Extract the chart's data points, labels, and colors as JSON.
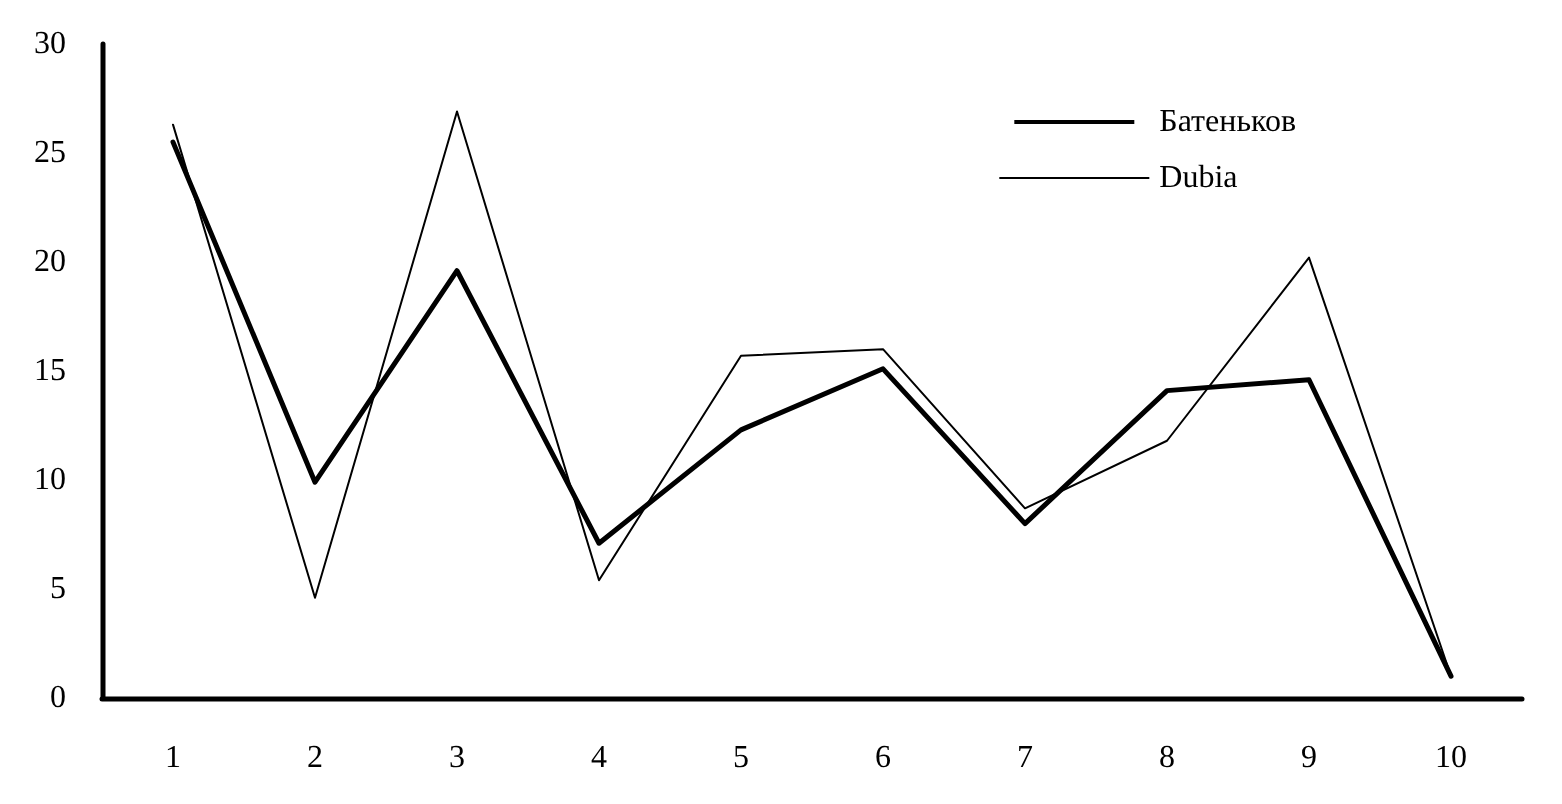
{
  "chart_data": {
    "type": "line",
    "categories": [
      "1",
      "2",
      "3",
      "4",
      "5",
      "6",
      "7",
      "8",
      "9",
      "10"
    ],
    "series": [
      {
        "name": "Батеньков",
        "color": "#000000",
        "values": [
          25.5,
          9.9,
          19.6,
          7.1,
          12.3,
          15.1,
          8.0,
          14.1,
          14.6,
          1.0
        ]
      },
      {
        "name": "Dubia",
        "color": "#000000",
        "values": [
          26.3,
          4.6,
          26.9,
          5.4,
          15.7,
          16.0,
          8.7,
          11.8,
          20.2,
          1.0
        ]
      }
    ],
    "ylim": [
      0,
      30
    ],
    "yticks": [
      0,
      5,
      10,
      15,
      20,
      25,
      30
    ],
    "grid": false,
    "legend": "top right",
    "marker": "none",
    "line_style": "solid"
  }
}
